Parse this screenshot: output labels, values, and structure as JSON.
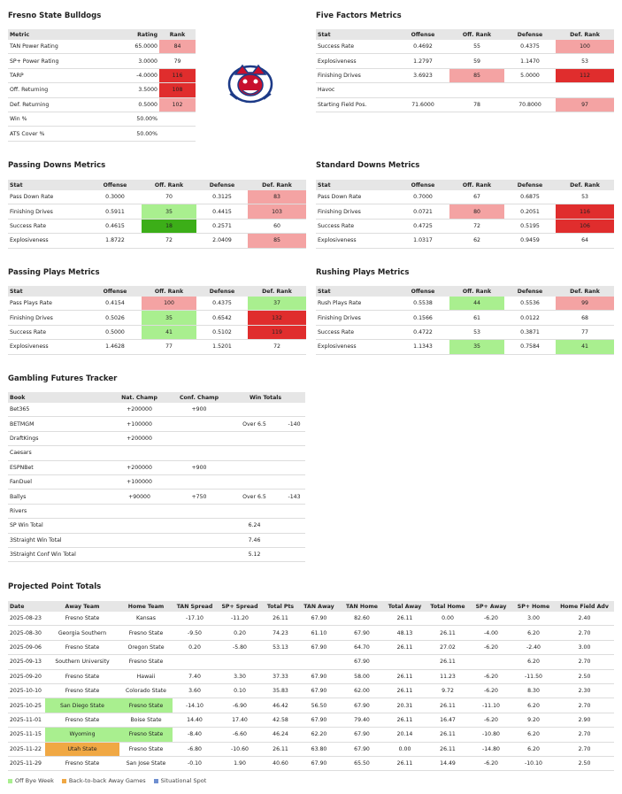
{
  "bulldogs": {
    "title": "Fresno State Bulldogs",
    "columns": [
      "Metric",
      "Rating",
      "Rank"
    ],
    "rows": [
      [
        "TAN Power Rating",
        "65.0000",
        "84"
      ],
      [
        "SP+ Power Rating",
        "3.0000",
        "79"
      ],
      [
        "TARP",
        "-4.0000",
        "116"
      ],
      [
        "Off. Returning",
        "3.5000",
        "108"
      ],
      [
        "Def. Returning",
        "0.5000",
        "102"
      ],
      [
        "Win %",
        "50.00%",
        null
      ],
      [
        "ATS Cover %",
        "50.00%",
        null
      ]
    ],
    "highlight": [
      [
        0,
        2,
        "#f4a3a3"
      ],
      [
        2,
        2,
        "#e02d2d"
      ],
      [
        3,
        2,
        "#e02d2d"
      ],
      [
        4,
        2,
        "#f4a3a3"
      ]
    ]
  },
  "five_factors": {
    "title": "Five Factors Metrics",
    "columns": [
      "Stat",
      "Offense",
      "Off. Rank",
      "Defense",
      "Def. Rank"
    ],
    "rows": [
      [
        "Success Rate",
        "0.4692",
        "55",
        "0.4375",
        "100"
      ],
      [
        "Explosiveness",
        "1.2797",
        "59",
        "1.1470",
        "53"
      ],
      [
        "Finishing Drives",
        "3.6923",
        "85",
        "5.0000",
        "112"
      ],
      [
        "Havoc",
        null,
        null,
        null,
        null
      ],
      [
        "Starting Field Pos.",
        "71.6000",
        "78",
        "70.8000",
        "97"
      ]
    ],
    "highlight": [
      [
        0,
        4,
        "#f4a3a3"
      ],
      [
        2,
        2,
        "#f4a3a3"
      ],
      [
        2,
        4,
        "#e02d2d"
      ],
      [
        4,
        4,
        "#f4a3a3"
      ]
    ]
  },
  "passing_downs": {
    "title": "Passing Downs Metrics",
    "columns": [
      "Stat",
      "Offense",
      "Off. Rank",
      "Defense",
      "Def. Rank"
    ],
    "rows": [
      [
        "Pass Down Rate",
        "0.3000",
        "70",
        "0.3125",
        "83"
      ],
      [
        "Finishing Drives",
        "0.5911",
        "35",
        "0.4415",
        "103"
      ],
      [
        "Success Rate",
        "0.4615",
        "18",
        "0.2571",
        "60"
      ],
      [
        "Explosiveness",
        "1.8722",
        "72",
        "2.0409",
        "85"
      ]
    ],
    "highlight": [
      [
        0,
        4,
        "#f4a3a3"
      ],
      [
        1,
        2,
        "#a9ef8f"
      ],
      [
        1,
        4,
        "#f4a3a3"
      ],
      [
        2,
        2,
        "#3cae18"
      ],
      [
        3,
        4,
        "#f4a3a3"
      ]
    ]
  },
  "standard_downs": {
    "title": "Standard Downs Metrics",
    "columns": [
      "Stat",
      "Offense",
      "Off. Rank",
      "Defense",
      "Def. Rank"
    ],
    "rows": [
      [
        "Pass Down Rate",
        "0.7000",
        "67",
        "0.6875",
        "53"
      ],
      [
        "Finishing Drives",
        "0.0721",
        "80",
        "0.2051",
        "116"
      ],
      [
        "Success Rate",
        "0.4725",
        "72",
        "0.5195",
        "106"
      ],
      [
        "Explosiveness",
        "1.0317",
        "62",
        "0.9459",
        "64"
      ]
    ],
    "highlight": [
      [
        1,
        2,
        "#f4a3a3"
      ],
      [
        1,
        4,
        "#e02d2d"
      ],
      [
        2,
        4,
        "#e02d2d"
      ]
    ]
  },
  "passing_plays": {
    "title": "Passing Plays Metrics",
    "columns": [
      "Stat",
      "Offense",
      "Off. Rank",
      "Defense",
      "Def. Rank"
    ],
    "rows": [
      [
        "Pass Plays Rate",
        "0.4154",
        "100",
        "0.4375",
        "37"
      ],
      [
        "Finishing Drives",
        "0.5026",
        "35",
        "0.6542",
        "132"
      ],
      [
        "Success Rate",
        "0.5000",
        "41",
        "0.5102",
        "119"
      ],
      [
        "Explosiveness",
        "1.4628",
        "77",
        "1.5201",
        "72"
      ]
    ],
    "highlight": [
      [
        0,
        2,
        "#f4a3a3"
      ],
      [
        0,
        4,
        "#a9ef8f"
      ],
      [
        1,
        2,
        "#a9ef8f"
      ],
      [
        1,
        4,
        "#e02d2d"
      ],
      [
        2,
        2,
        "#a9ef8f"
      ],
      [
        2,
        4,
        "#e02d2d"
      ]
    ]
  },
  "rushing_plays": {
    "title": "Rushing Plays Metrics",
    "columns": [
      "Stat",
      "Offense",
      "Off. Rank",
      "Defense",
      "Def. Rank"
    ],
    "rows": [
      [
        "Rush Plays Rate",
        "0.5538",
        "44",
        "0.5536",
        "99"
      ],
      [
        "Finishing Drives",
        "0.1566",
        "61",
        "0.0122",
        "68"
      ],
      [
        "Success Rate",
        "0.4722",
        "53",
        "0.3871",
        "77"
      ],
      [
        "Explosiveness",
        "1.1343",
        "35",
        "0.7584",
        "41"
      ]
    ],
    "highlight": [
      [
        0,
        2,
        "#a9ef8f"
      ],
      [
        0,
        4,
        "#f4a3a3"
      ],
      [
        3,
        2,
        "#a9ef8f"
      ],
      [
        3,
        4,
        "#a9ef8f"
      ]
    ]
  },
  "gambling": {
    "title": "Gambling Futures Tracker",
    "columns": [
      "Book",
      "Nat. Champ",
      "Conf. Champ",
      "Win Totals"
    ],
    "rows": [
      [
        "Bet365",
        "+200000",
        "+900",
        null,
        null
      ],
      [
        "BETMGM",
        "+100000",
        null,
        "Over 6.5",
        "-140"
      ],
      [
        "DraftKings",
        "+200000",
        null,
        null,
        null
      ],
      [
        "Caesars",
        null,
        null,
        null,
        null
      ],
      [
        "ESPNBet",
        "+200000",
        "+900",
        null,
        null
      ],
      [
        "FanDuel",
        "+100000",
        null,
        null,
        null
      ],
      [
        "Ballys",
        "+90000",
        "+750",
        "Over 6.5",
        "-143"
      ],
      [
        "Rivers",
        null,
        null,
        null,
        null
      ],
      [
        "SP Win Total",
        null,
        null,
        "6.24",
        null
      ],
      [
        "3Straight Win Total",
        null,
        null,
        "7.46",
        null
      ],
      [
        "3Straight Conf Win Total",
        null,
        null,
        "5.12",
        null
      ]
    ],
    "highlight": []
  },
  "projected": {
    "title": "Projected Point Totals",
    "columns": [
      "Date",
      "Away Team",
      "Home Team",
      "TAN Spread",
      "SP+ Spread",
      "Total Pts",
      "TAN Away",
      "TAN Home",
      "Total Away",
      "Total Home",
      "SP+ Away",
      "SP+ Home",
      "Home Field Adv"
    ],
    "rows": [
      [
        "2025-08-23",
        "Fresno State",
        "Kansas",
        "-17.10",
        "-11.20",
        "26.11",
        "67.90",
        "82.60",
        "26.11",
        "0.00",
        "-6.20",
        "3.00",
        "2.40"
      ],
      [
        "2025-08-30",
        "Georgia Southern",
        "Fresno State",
        "-9.50",
        "0.20",
        "74.23",
        "61.10",
        "67.90",
        "48.13",
        "26.11",
        "-4.00",
        "6.20",
        "2.70"
      ],
      [
        "2025-09-06",
        "Fresno State",
        "Oregon State",
        "0.20",
        "-5.80",
        "53.13",
        "67.90",
        "64.70",
        "26.11",
        "27.02",
        "-6.20",
        "-2.40",
        "3.00"
      ],
      [
        "2025-09-13",
        "Southern University",
        "Fresno State",
        null,
        null,
        null,
        null,
        "67.90",
        null,
        "26.11",
        null,
        "6.20",
        "2.70"
      ],
      [
        "2025-09-20",
        "Fresno State",
        "Hawaii",
        "7.40",
        "3.30",
        "37.33",
        "67.90",
        "58.00",
        "26.11",
        "11.23",
        "-6.20",
        "-11.50",
        "2.50"
      ],
      [
        "2025-10-10",
        "Fresno State",
        "Colorado State",
        "3.60",
        "0.10",
        "35.83",
        "67.90",
        "62.00",
        "26.11",
        "9.72",
        "-6.20",
        "8.30",
        "2.30"
      ],
      [
        "2025-10-25",
        "San Diego State",
        "Fresno State",
        "-14.10",
        "-6.90",
        "46.42",
        "56.50",
        "67.90",
        "20.31",
        "26.11",
        "-11.10",
        "6.20",
        "2.70"
      ],
      [
        "2025-11-01",
        "Fresno State",
        "Boise State",
        "14.40",
        "17.40",
        "42.58",
        "67.90",
        "79.40",
        "26.11",
        "16.47",
        "-6.20",
        "9.20",
        "2.90"
      ],
      [
        "2025-11-15",
        "Wyoming",
        "Fresno State",
        "-8.40",
        "-6.60",
        "46.24",
        "62.20",
        "67.90",
        "20.14",
        "26.11",
        "-10.80",
        "6.20",
        "2.70"
      ],
      [
        "2025-11-22",
        "Utah State",
        "Fresno State",
        "-6.80",
        "-10.60",
        "26.11",
        "63.80",
        "67.90",
        "0.00",
        "26.11",
        "-14.80",
        "6.20",
        "2.70"
      ],
      [
        "2025-11-29",
        "Fresno State",
        "San Jose State",
        "-0.10",
        "1.90",
        "40.60",
        "67.90",
        "65.50",
        "26.11",
        "14.49",
        "-6.20",
        "-10.10",
        "2.50"
      ]
    ],
    "highlight": [
      [
        6,
        1,
        "#a9ef8f"
      ],
      [
        6,
        2,
        "#a9ef8f"
      ],
      [
        8,
        1,
        "#a9ef8f"
      ],
      [
        8,
        2,
        "#a9ef8f"
      ],
      [
        9,
        1,
        "#f0a844"
      ]
    ],
    "legend": [
      {
        "label": "Off Bye Week",
        "color": "#a9ef8f"
      },
      {
        "label": "Back-to-back Away Games",
        "color": "#f0a844"
      },
      {
        "label": "Situational Spot",
        "color": "#6f8fd0"
      }
    ]
  }
}
